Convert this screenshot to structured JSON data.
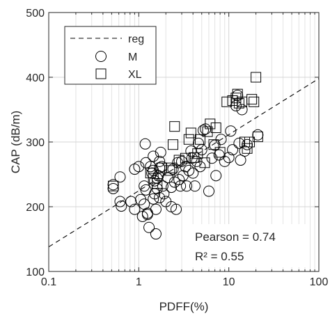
{
  "chart_data": {
    "type": "scatter",
    "xlabel": "PDFF(%)",
    "ylabel": "CAP (dB/m)",
    "xscale": "log",
    "xlim": [
      0.1,
      100
    ],
    "ylim": [
      100,
      500
    ],
    "x_ticks": [
      0.1,
      1,
      10,
      100
    ],
    "x_tick_labels": [
      "0.1",
      "1",
      "10",
      "100"
    ],
    "y_ticks": [
      100,
      200,
      300,
      400,
      500
    ],
    "y_tick_labels": [
      "100",
      "200",
      "300",
      "400",
      "500"
    ],
    "grid": true,
    "legend_position": "top-left",
    "legend": [
      {
        "label": "reg",
        "marker": "dashed-line"
      },
      {
        "label": "M",
        "marker": "circle"
      },
      {
        "label": "XL",
        "marker": "square"
      }
    ],
    "regression": {
      "x": [
        0.1,
        100
      ],
      "y": [
        138,
        398
      ]
    },
    "annotations": [
      "Pearson = 0.74",
      "R² = 0.55"
    ],
    "series": [
      {
        "label": "M",
        "marker": "circle",
        "points": [
          [
            0.52,
            234
          ],
          [
            0.52,
            228
          ],
          [
            0.62,
            246
          ],
          [
            0.62,
            208
          ],
          [
            0.64,
            201
          ],
          [
            0.82,
            208
          ],
          [
            0.9,
            258
          ],
          [
            0.9,
            196
          ],
          [
            1.0,
            262
          ],
          [
            1.05,
            211
          ],
          [
            1.1,
            185
          ],
          [
            1.15,
            204
          ],
          [
            1.15,
            232
          ],
          [
            1.18,
            297
          ],
          [
            1.2,
            268
          ],
          [
            1.2,
            226
          ],
          [
            1.25,
            190
          ],
          [
            1.25,
            188
          ],
          [
            1.3,
            168
          ],
          [
            1.35,
            262
          ],
          [
            1.4,
            252
          ],
          [
            1.45,
            278
          ],
          [
            1.45,
            256
          ],
          [
            1.45,
            212
          ],
          [
            1.5,
            240
          ],
          [
            1.5,
            220
          ],
          [
            1.55,
            196
          ],
          [
            1.6,
            228
          ],
          [
            1.6,
            244
          ],
          [
            1.65,
            248
          ],
          [
            1.7,
            270
          ],
          [
            1.7,
            260
          ],
          [
            1.7,
            214
          ],
          [
            1.75,
            284
          ],
          [
            1.8,
            262
          ],
          [
            1.85,
            232
          ],
          [
            1.9,
            220
          ],
          [
            2.0,
            208
          ],
          [
            2.1,
            245
          ],
          [
            2.3,
            200
          ],
          [
            2.3,
            230
          ],
          [
            2.4,
            258
          ],
          [
            2.5,
            238
          ],
          [
            2.6,
            196
          ],
          [
            2.7,
            268
          ],
          [
            2.8,
            242
          ],
          [
            2.9,
            232
          ],
          [
            3.0,
            270
          ],
          [
            3.1,
            248
          ],
          [
            3.3,
            262
          ],
          [
            3.4,
            232
          ],
          [
            3.6,
            256
          ],
          [
            3.8,
            286
          ],
          [
            3.9,
            275
          ],
          [
            4.0,
            252
          ],
          [
            4.2,
            232
          ],
          [
            4.4,
            270
          ],
          [
            4.6,
            298
          ],
          [
            4.8,
            262
          ],
          [
            5.0,
            288
          ],
          [
            5.2,
            318
          ],
          [
            5.5,
            320
          ],
          [
            6.0,
            224
          ],
          [
            6.5,
            275
          ],
          [
            7.0,
            295
          ],
          [
            7.2,
            248
          ],
          [
            7.8,
            280
          ],
          [
            8.2,
            304
          ],
          [
            9.0,
            270
          ],
          [
            10.0,
            276
          ],
          [
            10.5,
            317
          ],
          [
            11.0,
            288
          ],
          [
            12.0,
            356
          ],
          [
            12.5,
            372
          ],
          [
            13.0,
            298
          ],
          [
            13.5,
            272
          ],
          [
            14.0,
            350
          ],
          [
            15.0,
            286
          ],
          [
            16.0,
            296
          ],
          [
            21.0,
            311
          ],
          [
            1.55,
            158
          ]
        ]
      },
      {
        "label": "XL",
        "marker": "square",
        "points": [
          [
            0.52,
            232
          ],
          [
            1.35,
            252
          ],
          [
            1.45,
            244
          ],
          [
            1.6,
            236
          ],
          [
            1.8,
            260
          ],
          [
            2.2,
            256
          ],
          [
            2.3,
            260
          ],
          [
            2.4,
            296
          ],
          [
            2.5,
            324
          ],
          [
            2.8,
            272
          ],
          [
            3.3,
            275
          ],
          [
            3.6,
            304
          ],
          [
            3.8,
            314
          ],
          [
            4.1,
            276
          ],
          [
            4.5,
            282
          ],
          [
            4.8,
            304
          ],
          [
            5.4,
            268
          ],
          [
            5.8,
            316
          ],
          [
            6.2,
            328
          ],
          [
            6.8,
            296
          ],
          [
            7.2,
            322
          ],
          [
            8.0,
            284
          ],
          [
            9.5,
            362
          ],
          [
            11.0,
            364
          ],
          [
            12.0,
            368
          ],
          [
            12.5,
            374
          ],
          [
            13.0,
            360
          ],
          [
            14.0,
            362
          ],
          [
            15.0,
            300
          ],
          [
            16.0,
            290
          ],
          [
            18.0,
            366
          ],
          [
            19.0,
            362
          ],
          [
            20.0,
            400
          ],
          [
            21.0,
            308
          ],
          [
            17.0,
            300
          ]
        ]
      }
    ]
  }
}
